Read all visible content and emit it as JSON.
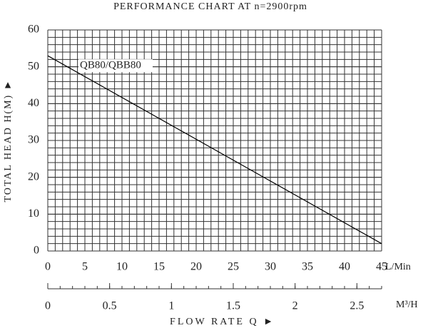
{
  "chart_data": {
    "type": "line",
    "title": "PERFORMANCE CHART AT n=2900rpm",
    "y_label": "TOTAL HEAD H(M) ►",
    "x_label": "FLOW RATE Q ►",
    "x_unit": "L/Min",
    "x2_unit": "M³/H",
    "x": [
      0,
      45
    ],
    "series": [
      {
        "name": "QB80/QBB80",
        "color": "#000000",
        "values": [
          53,
          2
        ]
      }
    ],
    "xlim": [
      0,
      45
    ],
    "xticks": [
      0,
      5,
      10,
      15,
      20,
      25,
      30,
      35,
      40,
      45
    ],
    "x2lim": [
      0,
      2.7
    ],
    "x2ticks": [
      0,
      0.5,
      1,
      1.5,
      2,
      2.5
    ],
    "ylim": [
      0,
      60
    ],
    "yticks": [
      0,
      10,
      20,
      30,
      40,
      50,
      60
    ],
    "grid": true
  }
}
